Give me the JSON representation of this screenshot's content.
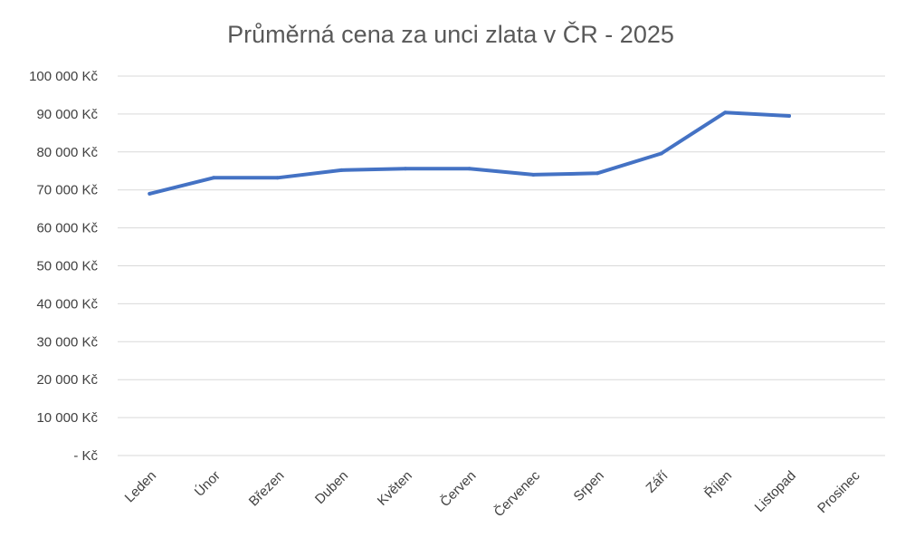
{
  "chart_data": {
    "type": "line",
    "title": "Průměrná cena za unci zlata v ČR - 2025",
    "xlabel": "",
    "ylabel": "",
    "categories": [
      "Leden",
      "Únor",
      "Březen",
      "Duben",
      "Květen",
      "Červen",
      "Červenec",
      "Srpen",
      "Září",
      "Říjen",
      "Listopad",
      "Prosinec"
    ],
    "series": [
      {
        "values": [
          69000,
          73200,
          73200,
          75200,
          75600,
          75600,
          74000,
          74400,
          79600,
          90400,
          89500,
          null
        ]
      }
    ],
    "ylim": [
      0,
      100000
    ],
    "yticks": [
      0,
      10000,
      20000,
      30000,
      40000,
      50000,
      60000,
      70000,
      80000,
      90000,
      100000
    ],
    "ytick_labels": [
      "-  Kč",
      "10 000 Kč",
      "20 000 Kč",
      "30 000 Kč",
      "40 000 Kč",
      "50 000 Kč",
      "60 000 Kč",
      "70 000 Kč",
      "80 000 Kč",
      "90 000 Kč",
      "100 000 Kč"
    ],
    "grid": true,
    "legend": "none",
    "line_color": "#4472c4"
  }
}
